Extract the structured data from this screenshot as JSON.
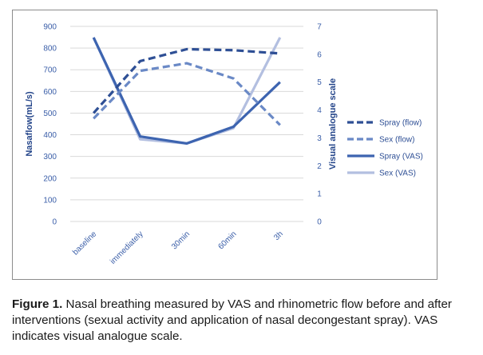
{
  "chart_data": {
    "type": "line",
    "categories": [
      "baseline",
      "immediately",
      "30min",
      "60min",
      "3h"
    ],
    "y_left": {
      "label": "Nasaflow(mL/s)",
      "ylim": [
        0,
        900
      ],
      "ticks": [
        "0",
        "100",
        "200",
        "300",
        "400",
        "500",
        "600",
        "700",
        "800",
        "900"
      ]
    },
    "y_right": {
      "label": "Visual analogue scale",
      "ylim": [
        0,
        7
      ],
      "ticks": [
        "0",
        "1",
        "2",
        "3",
        "4",
        "5",
        "6",
        "7"
      ]
    },
    "series": [
      {
        "name": "Spray (flow)",
        "axis": "left",
        "style": "dashed",
        "color": "#2e4f95",
        "values": [
          500,
          740,
          795,
          790,
          775
        ]
      },
      {
        "name": "Sex (flow)",
        "axis": "left",
        "style": "dashed",
        "color": "#6a89c6",
        "values": [
          475,
          695,
          730,
          660,
          445
        ]
      },
      {
        "name": "Spray (VAS)",
        "axis": "right",
        "style": "solid",
        "color": "#3d64b0",
        "values": [
          6.6,
          3.05,
          2.8,
          3.4,
          5.0
        ]
      },
      {
        "name": "Sex (VAS)",
        "axis": "right",
        "style": "solid",
        "color": "#b3bfe0",
        "values": [
          6.6,
          2.95,
          2.8,
          3.35,
          6.6
        ]
      }
    ],
    "grid": true,
    "legend_position": "right"
  },
  "caption": {
    "label": "Figure 1.",
    "text": "Nasal breathing measured by VAS and rhinometric flow before and after interventions (sexual activity and application of nasal decongestant spray). VAS indicates visual analogue scale."
  }
}
